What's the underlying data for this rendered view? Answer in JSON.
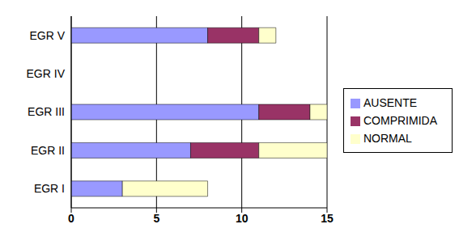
{
  "chart_data": {
    "type": "bar",
    "orientation": "horizontal",
    "stacked": true,
    "categories": [
      "EGR I",
      "EGR II",
      "EGR III",
      "EGR IV",
      "EGR V"
    ],
    "series": [
      {
        "name": "AUSENTE",
        "color": "#9999ff",
        "values": [
          3,
          7,
          11,
          0,
          8
        ]
      },
      {
        "name": "COMPRIMIDA",
        "color": "#993366",
        "values": [
          0,
          4,
          3,
          0,
          3
        ]
      },
      {
        "name": "NORMAL",
        "color": "#ffffcc",
        "values": [
          5,
          4,
          1,
          0,
          1
        ]
      }
    ],
    "xlim": [
      0,
      15
    ],
    "xticks": [
      0,
      5,
      10,
      15
    ],
    "grid": true,
    "legend": "right"
  }
}
